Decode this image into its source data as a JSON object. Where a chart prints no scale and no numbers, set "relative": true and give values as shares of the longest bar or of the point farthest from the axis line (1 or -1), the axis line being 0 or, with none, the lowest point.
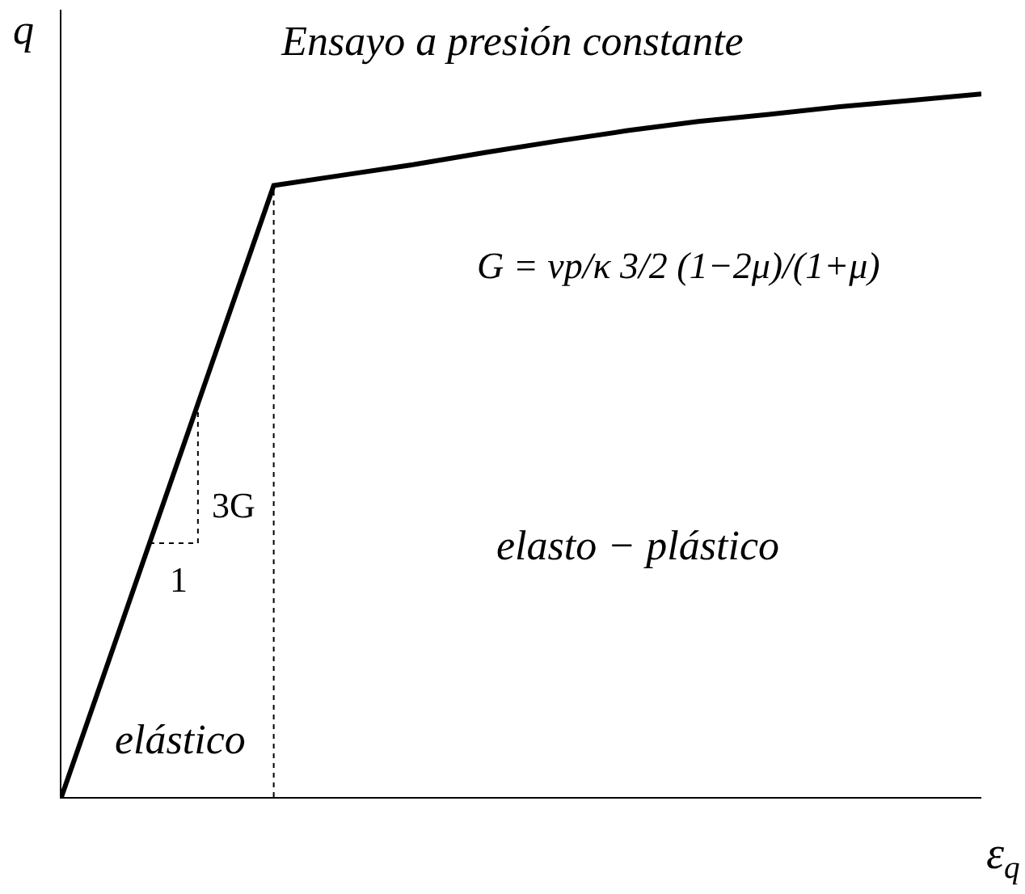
{
  "chart_data": {
    "type": "line",
    "title": "Ensayo a presión constante",
    "xlabel": "ε$_{q}$",
    "ylabel": "q",
    "relative": true,
    "categories": [
      null,
      null,
      null,
      null,
      null,
      null,
      null,
      null,
      null,
      null,
      null,
      null,
      null,
      null
    ],
    "values": [
      0,
      0.29,
      0.58,
      0.87,
      0.885,
      0.9,
      0.917,
      0.933,
      0.948,
      0.961,
      0.971,
      0.982,
      0.991,
      1
    ],
    "color": "#000000",
    "annotations": [
      "3G",
      "1",
      "elástico",
      "G = νp/κ 3/2 (1−2μ)/(1+μ)",
      "elasto − plástico"
    ],
    "legend": false
  }
}
